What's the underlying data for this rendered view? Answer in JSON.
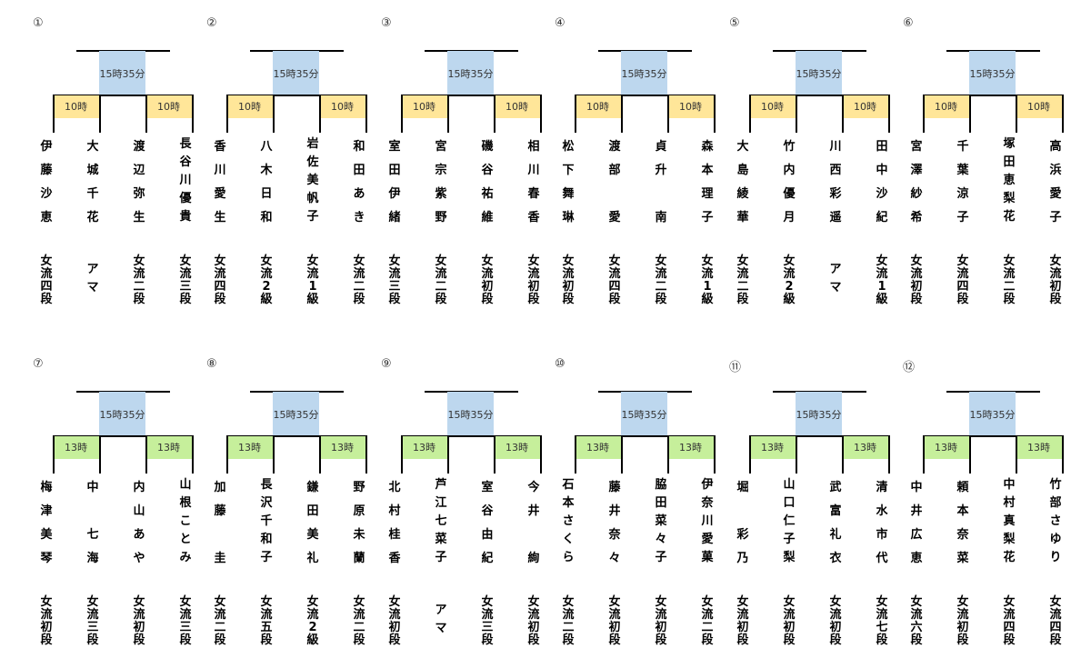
{
  "brackets": [
    {
      "number": "①",
      "final_time": "15時35分",
      "round1_time": "10時",
      "players": [
        {
          "name": "伊藤沙恵",
          "rank": "女流四段"
        },
        {
          "name": "大城千花",
          "rank": "アマ"
        },
        {
          "name": "渡辺弥生",
          "rank": "女流二段"
        },
        {
          "name": "長谷川優貴",
          "rank": "女流三段"
        }
      ]
    },
    {
      "number": "②",
      "final_time": "15時35分",
      "round1_time": "10時",
      "players": [
        {
          "name": "香川愛生",
          "rank": "女流四段"
        },
        {
          "name": "八木日和",
          "rank": "女流2級"
        },
        {
          "name": "岩佐美帆子",
          "rank": "女流1級"
        },
        {
          "name": "和田あき",
          "rank": "女流二段"
        }
      ]
    },
    {
      "number": "③",
      "final_time": "15時35分",
      "round1_time": "10時",
      "players": [
        {
          "name": "室田伊緒",
          "rank": "女流三段"
        },
        {
          "name": "宮宗紫野",
          "rank": "女流二段"
        },
        {
          "name": "磯谷祐維",
          "rank": "女流初段"
        },
        {
          "name": "相川春香",
          "rank": "女流初段"
        }
      ]
    },
    {
      "number": "④",
      "final_time": "15時35分",
      "round1_time": "10時",
      "players": [
        {
          "name": "松下舞琳",
          "rank": "女流初段"
        },
        {
          "name": "渡部 愛",
          "rank": "女流四段"
        },
        {
          "name": "貞升 南",
          "rank": "女流二段"
        },
        {
          "name": "森本理子",
          "rank": "女流1級"
        }
      ]
    },
    {
      "number": "⑤",
      "final_time": "15時35分",
      "round1_time": "10時",
      "players": [
        {
          "name": "大島綾華",
          "rank": "女流二段"
        },
        {
          "name": "竹内優月",
          "rank": "女流2級"
        },
        {
          "name": "川西彩遥",
          "rank": "アマ"
        },
        {
          "name": "田中沙紀",
          "rank": "女流1級"
        }
      ]
    },
    {
      "number": "⑥",
      "final_time": "15時35分",
      "round1_time": "10時",
      "players": [
        {
          "name": "宮澤紗希",
          "rank": "女流初段"
        },
        {
          "name": "千葉涼子",
          "rank": "女流四段"
        },
        {
          "name": "塚田恵梨花",
          "rank": "女流二段"
        },
        {
          "name": "高浜愛子",
          "rank": "女流初段"
        }
      ]
    },
    {
      "number": "⑦",
      "final_time": "15時35分",
      "round1_time": "13時",
      "players": [
        {
          "name": "梅津美琴",
          "rank": "女流初段"
        },
        {
          "name": "中 七海",
          "rank": "女流三段"
        },
        {
          "name": "内山あや",
          "rank": "女流初段"
        },
        {
          "name": "山根ことみ",
          "rank": "女流三段"
        }
      ]
    },
    {
      "number": "⑧",
      "final_time": "15時35分",
      "round1_time": "13時",
      "players": [
        {
          "name": "加藤 圭",
          "rank": "女流二段"
        },
        {
          "name": "長沢千和子",
          "rank": "女流五段"
        },
        {
          "name": "鎌田美礼",
          "rank": "女流2級"
        },
        {
          "name": "野原未蘭",
          "rank": "女流二段"
        }
      ]
    },
    {
      "number": "⑨",
      "final_time": "15時35分",
      "round1_time": "13時",
      "players": [
        {
          "name": "北村桂香",
          "rank": "女流初段"
        },
        {
          "name": "芦江七菜子",
          "rank": "アマ"
        },
        {
          "name": "室谷由紀",
          "rank": "女流三段"
        },
        {
          "name": "今井 絢",
          "rank": "女流初段"
        }
      ]
    },
    {
      "number": "⑩",
      "final_time": "15時35分",
      "round1_time": "13時",
      "players": [
        {
          "name": "石本さくら",
          "rank": "女流二段"
        },
        {
          "name": "藤井奈々",
          "rank": "女流初段"
        },
        {
          "name": "脇田菜々子",
          "rank": "女流初段"
        },
        {
          "name": "伊奈川愛菓",
          "rank": "女流二段"
        }
      ]
    },
    {
      "number": "⑪",
      "final_time": "15時35分",
      "round1_time": "13時",
      "players": [
        {
          "name": "堀 彩乃",
          "rank": "女流初段"
        },
        {
          "name": "山口仁子梨",
          "rank": "女流初段"
        },
        {
          "name": "武富礼衣",
          "rank": "女流初段"
        },
        {
          "name": "清水市代",
          "rank": "女流七段"
        }
      ]
    },
    {
      "number": "⑫",
      "final_time": "15時35分",
      "round1_time": "13時",
      "players": [
        {
          "name": "中井広恵",
          "rank": "女流六段"
        },
        {
          "name": "頼本奈菜",
          "rank": "女流初段"
        },
        {
          "name": "中村真梨花",
          "rank": "女流四段"
        },
        {
          "name": "竹部さゆり",
          "rank": "女流四段"
        }
      ]
    }
  ],
  "colors": {
    "final_box": "#bdd7ee",
    "morning_box": "#ffe699",
    "afternoon_box": "#c6ef9b"
  }
}
